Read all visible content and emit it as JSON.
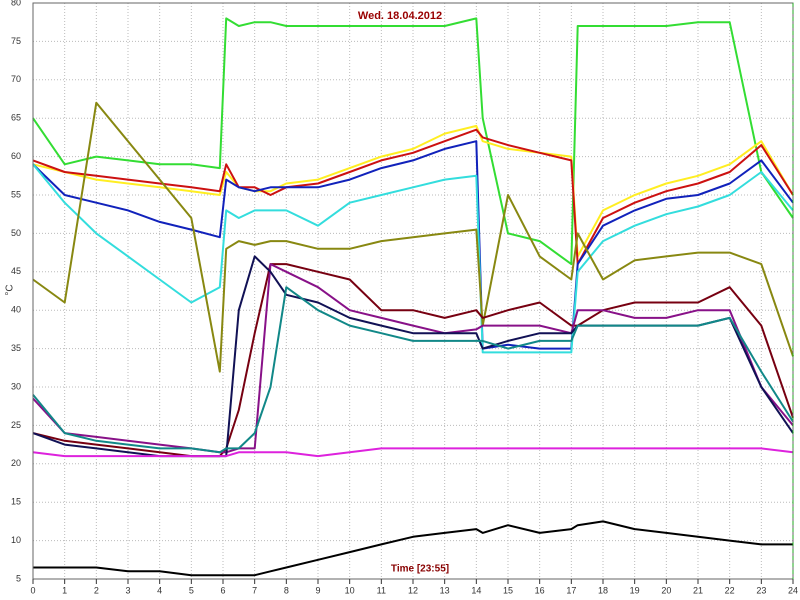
{
  "chart_data": {
    "type": "line",
    "title": "Wed. 18.04.2012",
    "x_label": "Time [23:55]",
    "y_label": "°C",
    "x": [
      0,
      1,
      2,
      3,
      4,
      5,
      5.9,
      6.1,
      6.5,
      7,
      7.5,
      8,
      9,
      10,
      11,
      12,
      13,
      14,
      14.2,
      15,
      16,
      17,
      17.2,
      18,
      19,
      20,
      21,
      22,
      23,
      24
    ],
    "series": [
      {
        "color": "#33dd33",
        "values": [
          65,
          59,
          60,
          59.5,
          59,
          59,
          58.5,
          78,
          77,
          77.5,
          77.5,
          77,
          77,
          77,
          77,
          77,
          77,
          78,
          65,
          50,
          49,
          46,
          77,
          77,
          77,
          77,
          77.5,
          77.5,
          58,
          52
        ]
      },
      {
        "color": "#ffee22",
        "values": [
          59,
          58,
          57,
          56.5,
          56,
          55.5,
          55,
          58,
          56,
          55.5,
          55.5,
          56.5,
          57,
          58.5,
          60,
          61,
          63,
          64,
          62,
          61,
          60.5,
          60,
          47,
          53,
          55,
          56.5,
          57.5,
          59,
          62,
          55
        ]
      },
      {
        "color": "#cc1111",
        "values": [
          59.5,
          58,
          57.5,
          57,
          56.5,
          56,
          55.5,
          59,
          56,
          56,
          55,
          56,
          56.5,
          58,
          59.5,
          60.5,
          62,
          63.5,
          62.5,
          61.5,
          60.5,
          59.5,
          46,
          52,
          54,
          55.5,
          56.5,
          58,
          61.5,
          55
        ]
      },
      {
        "color": "#1122bb",
        "values": [
          59,
          55,
          54,
          53,
          51.5,
          50.5,
          49.5,
          57,
          56,
          55.5,
          56,
          56,
          56,
          57,
          58.5,
          59.5,
          61,
          62,
          35,
          35.5,
          35,
          35,
          46,
          51,
          53,
          54.5,
          55,
          56.5,
          59.5,
          54
        ]
      },
      {
        "color": "#33dddd",
        "values": [
          59,
          54,
          50,
          47,
          44,
          41,
          43,
          53,
          52,
          53,
          53,
          53,
          51,
          54,
          55,
          56,
          57,
          57.5,
          34.5,
          34.5,
          34.5,
          34.5,
          45,
          49,
          51,
          52.5,
          53.5,
          55,
          58,
          53
        ]
      },
      {
        "color": "#888811",
        "values": [
          44,
          41,
          67,
          62,
          57,
          52,
          32,
          48,
          49,
          48.5,
          49,
          49,
          48,
          48,
          49,
          49.5,
          50,
          50.5,
          38,
          55,
          47,
          44,
          50,
          44,
          46.5,
          47,
          47.5,
          47.5,
          46,
          34
        ]
      },
      {
        "color": "#770011",
        "values": [
          24,
          23,
          22.5,
          22,
          21.5,
          21,
          21,
          22,
          27,
          37,
          46,
          46,
          45,
          44,
          40,
          40,
          39,
          40,
          39,
          40,
          41,
          38,
          38,
          40,
          41,
          41,
          41,
          43,
          38,
          26
        ]
      },
      {
        "color": "#881188",
        "values": [
          28.5,
          24,
          23.5,
          23,
          22.5,
          22,
          21.5,
          21.5,
          22,
          22,
          46,
          45,
          43,
          40,
          39,
          38,
          37,
          37.5,
          38,
          38,
          38,
          37,
          40,
          40,
          39,
          39,
          40,
          40,
          30,
          25
        ]
      },
      {
        "color": "#111155",
        "values": [
          24,
          22.5,
          22,
          21.5,
          21,
          21,
          21,
          21,
          40,
          47,
          45,
          42,
          41,
          39,
          38,
          37,
          37,
          37,
          35,
          36,
          37,
          37,
          38,
          38,
          38,
          38,
          38,
          39,
          30,
          24
        ]
      },
      {
        "color": "#118888",
        "values": [
          29,
          24,
          23,
          22.5,
          22,
          22,
          21.5,
          22,
          22,
          24,
          30,
          43,
          40,
          38,
          37,
          36,
          36,
          36,
          36,
          35,
          36,
          36,
          38,
          38,
          38,
          38,
          38,
          39,
          32,
          25.5
        ]
      },
      {
        "color": "#dd22dd",
        "values": [
          21.5,
          21,
          21,
          21,
          21,
          21,
          21,
          21,
          21.5,
          21.5,
          21.5,
          21.5,
          21,
          21.5,
          22,
          22,
          22,
          22,
          22,
          22,
          22,
          22,
          22,
          22,
          22,
          22,
          22,
          22,
          22,
          21.5
        ]
      },
      {
        "color": "#000000",
        "values": [
          6.5,
          6.5,
          6.5,
          6,
          6,
          5.5,
          5.5,
          5.5,
          5.5,
          5.5,
          6,
          6.5,
          7.5,
          8.5,
          9.5,
          10.5,
          11,
          11.5,
          11,
          12,
          11,
          11.5,
          12,
          12.5,
          11.5,
          11,
          10.5,
          10,
          9.5,
          9.5
        ]
      }
    ],
    "xlim": [
      0,
      24
    ],
    "ylim": [
      5,
      80
    ],
    "xticks": [
      0,
      1,
      2,
      3,
      4,
      5,
      6,
      7,
      8,
      9,
      10,
      11,
      12,
      13,
      14,
      15,
      16,
      17,
      18,
      19,
      20,
      21,
      22,
      23,
      24
    ],
    "yticks": [
      5,
      10,
      15,
      20,
      25,
      30,
      35,
      40,
      45,
      50,
      55,
      60,
      65,
      70,
      75,
      80
    ],
    "grid": true
  }
}
